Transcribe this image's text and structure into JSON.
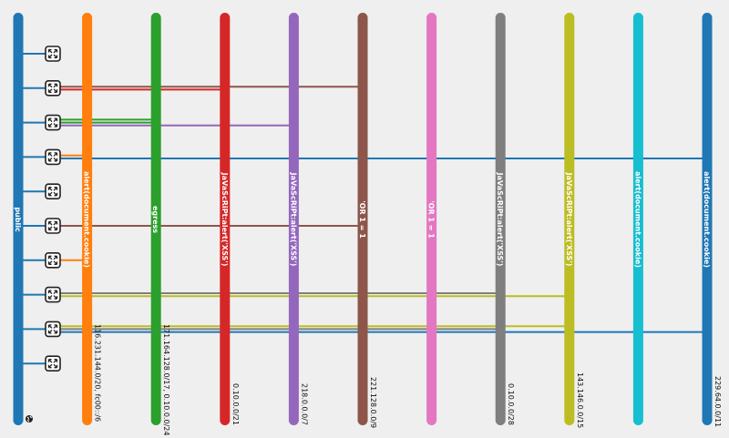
{
  "networks": [
    {
      "name": "public",
      "cidr": "",
      "color": "#1f77b4",
      "external": true
    },
    {
      "name": "alert(document.cookie)",
      "cidr": "116.231.144.0/20, fc00::/6",
      "color": "#ff7f0e"
    },
    {
      "name": "egress",
      "cidr": "171.164.128.0/17, 0.10.0.0/24",
      "color": "#2ca02c"
    },
    {
      "name": "JaVaScRiPt:alert('XSS')",
      "cidr": "0.10.0.0/21",
      "color": "#d62728"
    },
    {
      "name": "JaVaScRiPt:alert('XSS')",
      "cidr": "218.0.0.0/7",
      "color": "#9467bd"
    },
    {
      "name": "'OR 1 = 1",
      "cidr": "221.128.0.0/9",
      "color": "#8c564b"
    },
    {
      "name": "'OR 1 = 1",
      "cidr": "",
      "color": "#e377c2"
    },
    {
      "name": "JaVaScRiPt:alert('XSS')",
      "cidr": "0.10.0.0/28",
      "color": "#7f7f7f"
    },
    {
      "name": "JaVaScRiPt:alert('XSS')",
      "cidr": "143.146.0.0/15",
      "color": "#bcbd22"
    },
    {
      "name": "alert(document.cookie)",
      "cidr": "",
      "color": "#17becf"
    },
    {
      "name": "alert(document.cookie)",
      "cidr": "229.64.0.0/11",
      "color": "#1f77b4"
    }
  ],
  "routers": [
    {
      "icon": "router-icon",
      "ports": [
        0
      ]
    },
    {
      "icon": "router-icon",
      "ports": [
        0,
        5,
        3
      ]
    },
    {
      "icon": "router-icon",
      "ports": [
        0,
        2,
        2,
        4
      ]
    },
    {
      "icon": "router-icon",
      "ports": [
        0,
        1,
        10
      ]
    },
    {
      "icon": "router-icon",
      "ports": [
        0
      ]
    },
    {
      "icon": "router-icon",
      "ports": [
        0,
        5
      ]
    },
    {
      "icon": "router-icon",
      "ports": [
        0,
        1
      ]
    },
    {
      "icon": "router-icon",
      "ports": [
        0,
        7,
        8
      ]
    },
    {
      "icon": "router-icon",
      "ports": [
        0,
        8,
        7,
        10
      ]
    },
    {
      "icon": "router-icon",
      "ports": [
        0
      ]
    }
  ],
  "external_icon": "globe-icon"
}
